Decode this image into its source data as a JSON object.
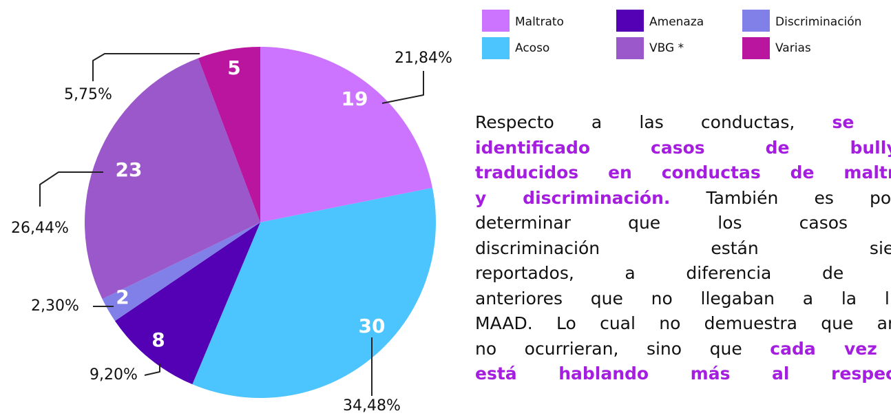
{
  "chart_data": {
    "type": "pie",
    "categories": [
      "Maltrato",
      "Acoso",
      "Amenaza",
      "Discriminación",
      "VBG *",
      "Varias"
    ],
    "values": [
      19,
      30,
      8,
      2,
      23,
      5
    ],
    "percentages": [
      21.84,
      34.48,
      9.2,
      2.3,
      26.44,
      5.75
    ],
    "percentage_labels": [
      "21,84%",
      "34,48%",
      "9,20%",
      "2,30%",
      "26,44%",
      "5,75%"
    ],
    "colors": [
      "#cc73ff",
      "#4cc4fd",
      "#5400b5",
      "#8080e8",
      "#9b58ca",
      "#b9159f"
    ],
    "legend_order": [
      0,
      2,
      3,
      1,
      4,
      5
    ]
  },
  "text": {
    "lines": [
      [
        {
          "t": "Respecto a las conductas, "
        },
        {
          "t": "se ha",
          "b": true
        }
      ],
      [
        {
          "t": "identificado casos de bullyin",
          "b": true
        }
      ],
      [
        {
          "t": "traducidos en conductas de maltrat",
          "b": true
        }
      ],
      [
        {
          "t": "y discriminación.",
          "b": true
        },
        {
          "t": " También es posib"
        }
      ],
      [
        {
          "t": "determinar que los casos p"
        }
      ],
      [
        {
          "t": "discriminación están siend"
        }
      ],
      [
        {
          "t": "reportados, a diferencia de añ"
        }
      ],
      [
        {
          "t": "anteriores que no llegaban a la líne"
        }
      ],
      [
        {
          "t": "MAAD. Lo cual no demuestra que ante"
        }
      ],
      [
        {
          "t": "no ocurrieran, sino que "
        },
        {
          "t": "cada vez s",
          "b": true
        }
      ],
      [
        {
          "t": "está hablando más al respecto",
          "b": true
        }
      ]
    ]
  }
}
